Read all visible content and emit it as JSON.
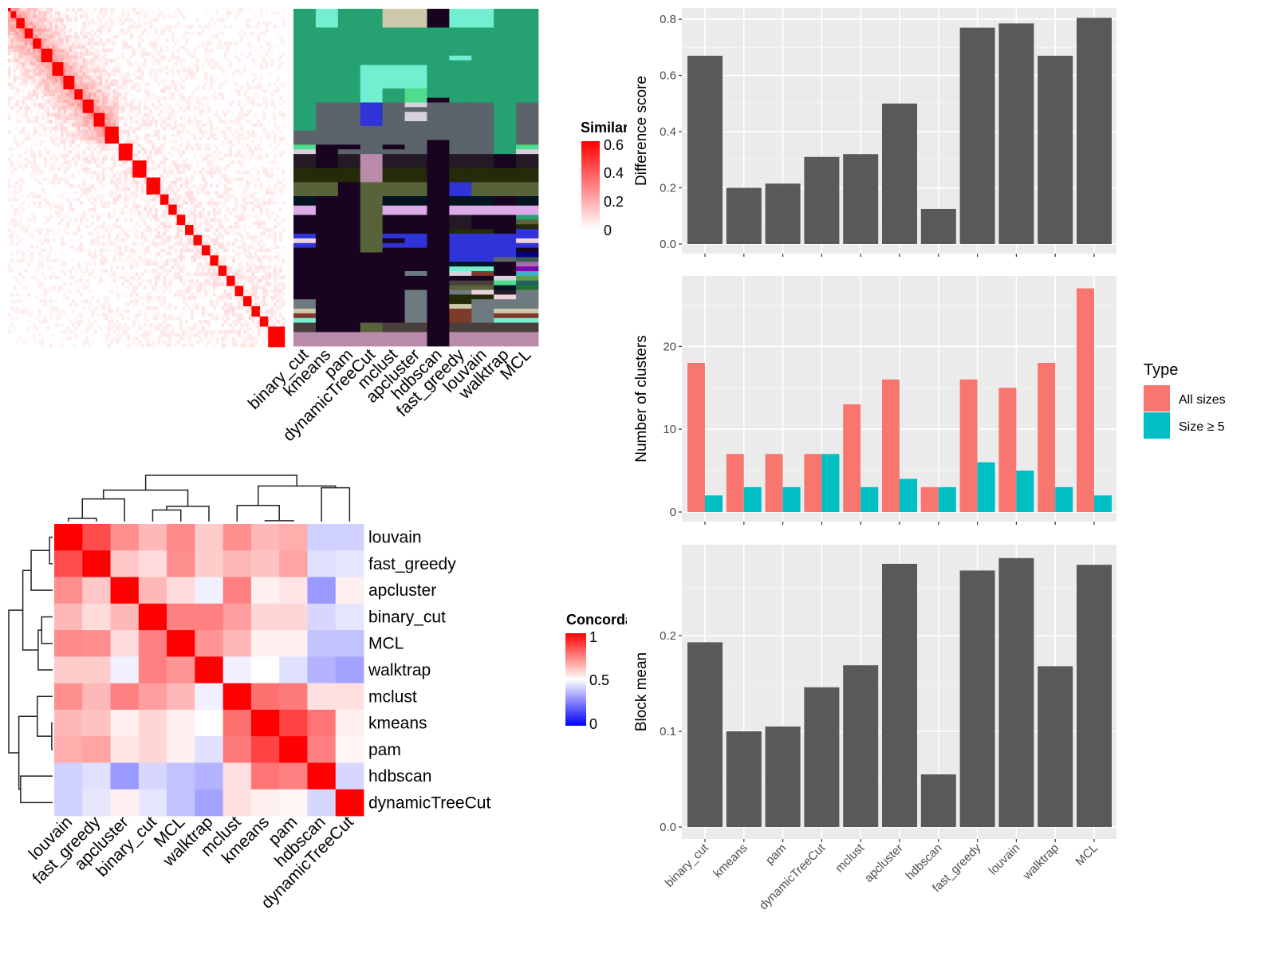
{
  "colors": {
    "panel_bg": "#ebebeb",
    "bar_gray": "#595959",
    "all_sizes": "#f8766d",
    "size5": "#00bfc4",
    "sim_low": "#ffffff",
    "sim_high": "#ff0000",
    "conc_low": "#0000ff",
    "conc_mid": "#ffffff",
    "conc_high": "#ff0000"
  },
  "similarity_legend": {
    "title": "Similarity",
    "ticks": [
      "0",
      "0.2",
      "0.4",
      "0.6"
    ],
    "range": [
      0,
      0.6
    ]
  },
  "concordance_legend": {
    "title": "Concordance",
    "ticks": [
      "0",
      "0.5",
      "1"
    ],
    "range": [
      0,
      1
    ]
  },
  "membership": {
    "methods": [
      "binary_cut",
      "kmeans",
      "pam",
      "dynamicTreeCut",
      "mclust",
      "apcluster",
      "hdbscan",
      "fast_greedy",
      "louvain",
      "walktrap",
      "MCL"
    ],
    "n_rows": 72,
    "palette": {
      "G": "#26a172",
      "M": "#72eed0",
      "T": "#cfc9ab",
      "D": "#180420",
      "S": "#5a646a",
      "B": "#2f33d8",
      "L": "#d8d0dc",
      "LG": "#4edd8c",
      "K": "#231a26",
      "O": "#252a08",
      "O2": "#58633a",
      "N": "#021520",
      "P": "#dcaae6",
      "MV": "#b98aaa",
      "GR": "#6f7a80",
      "BR": "#803a2c",
      "DB": "#4a3f3e",
      "PL": "#ecd3dc",
      "NV": "#00008b",
      "TL": "#3c5c50",
      "VL": "#a070b0",
      "PU": "#8000b0",
      "SB": "#40b0d0",
      "LI": "#60a040",
      "TE": "#206060",
      "FG": "#207030"
    },
    "columns": [
      [
        [
          0,
          26,
          "G"
        ],
        [
          26,
          29,
          "S"
        ],
        [
          29,
          30,
          "LG"
        ],
        [
          30,
          31,
          "L"
        ],
        [
          31,
          34,
          "K"
        ],
        [
          34,
          37,
          "O"
        ],
        [
          37,
          40,
          "O2"
        ],
        [
          40,
          42,
          "N"
        ],
        [
          42,
          44,
          "P"
        ],
        [
          44,
          48,
          "D"
        ],
        [
          48,
          49,
          "B"
        ],
        [
          49,
          50,
          "PL"
        ],
        [
          50,
          51,
          "B"
        ],
        [
          51,
          62,
          "D"
        ],
        [
          62,
          64,
          "GR"
        ],
        [
          64,
          65,
          "T"
        ],
        [
          65,
          66,
          "BR"
        ],
        [
          66,
          67,
          "M"
        ],
        [
          67,
          69,
          "DB"
        ],
        [
          69,
          72,
          "MV"
        ]
      ],
      [
        [
          0,
          4,
          "M"
        ],
        [
          4,
          20,
          "G"
        ],
        [
          20,
          29,
          "S"
        ],
        [
          29,
          34,
          "D"
        ],
        [
          34,
          37,
          "O"
        ],
        [
          37,
          40,
          "O2"
        ],
        [
          40,
          69,
          "D"
        ],
        [
          69,
          72,
          "MV"
        ]
      ],
      [
        [
          0,
          20,
          "G"
        ],
        [
          20,
          29,
          "S"
        ],
        [
          29,
          30,
          "D"
        ],
        [
          30,
          31,
          "S"
        ],
        [
          31,
          34,
          "K"
        ],
        [
          34,
          37,
          "O"
        ],
        [
          37,
          69,
          "D"
        ],
        [
          69,
          72,
          "MV"
        ]
      ],
      [
        [
          0,
          12,
          "G"
        ],
        [
          12,
          20,
          "M"
        ],
        [
          20,
          25,
          "B"
        ],
        [
          25,
          31,
          "S"
        ],
        [
          31,
          37,
          "MV"
        ],
        [
          37,
          52,
          "O2"
        ],
        [
          52,
          67,
          "D"
        ],
        [
          67,
          69,
          "O2"
        ],
        [
          69,
          72,
          "MV"
        ]
      ],
      [
        [
          0,
          4,
          "T"
        ],
        [
          4,
          12,
          "G"
        ],
        [
          12,
          17,
          "M"
        ],
        [
          17,
          20,
          "G"
        ],
        [
          20,
          29,
          "S"
        ],
        [
          29,
          30,
          "D"
        ],
        [
          30,
          31,
          "S"
        ],
        [
          31,
          34,
          "K"
        ],
        [
          34,
          37,
          "O"
        ],
        [
          37,
          40,
          "O2"
        ],
        [
          40,
          42,
          "N"
        ],
        [
          42,
          44,
          "P"
        ],
        [
          44,
          48,
          "D"
        ],
        [
          48,
          49,
          "B"
        ],
        [
          49,
          50,
          "D"
        ],
        [
          50,
          51,
          "B"
        ],
        [
          51,
          67,
          "D"
        ],
        [
          67,
          69,
          "DB"
        ],
        [
          69,
          72,
          "MV"
        ]
      ],
      [
        [
          0,
          4,
          "T"
        ],
        [
          4,
          12,
          "G"
        ],
        [
          12,
          17,
          "M"
        ],
        [
          17,
          20,
          "LG"
        ],
        [
          20,
          21,
          "L"
        ],
        [
          21,
          22,
          "S"
        ],
        [
          22,
          24,
          "L"
        ],
        [
          24,
          31,
          "S"
        ],
        [
          31,
          34,
          "K"
        ],
        [
          34,
          37,
          "O"
        ],
        [
          37,
          40,
          "O2"
        ],
        [
          40,
          42,
          "N"
        ],
        [
          42,
          44,
          "P"
        ],
        [
          44,
          48,
          "D"
        ],
        [
          48,
          51,
          "B"
        ],
        [
          51,
          56,
          "D"
        ],
        [
          56,
          57,
          "GR"
        ],
        [
          57,
          60,
          "D"
        ],
        [
          60,
          67,
          "GR"
        ],
        [
          67,
          69,
          "DB"
        ],
        [
          69,
          72,
          "MV"
        ]
      ],
      [
        [
          0,
          4,
          "D"
        ],
        [
          4,
          19,
          "G"
        ],
        [
          19,
          20,
          "D"
        ],
        [
          20,
          28,
          "S"
        ],
        [
          28,
          72,
          "D"
        ]
      ],
      [
        [
          0,
          4,
          "M"
        ],
        [
          4,
          10,
          "G"
        ],
        [
          10,
          11,
          "M"
        ],
        [
          11,
          20,
          "G"
        ],
        [
          20,
          31,
          "S"
        ],
        [
          31,
          34,
          "K"
        ],
        [
          34,
          37,
          "O"
        ],
        [
          37,
          40,
          "B"
        ],
        [
          40,
          42,
          "N"
        ],
        [
          42,
          44,
          "P"
        ],
        [
          44,
          47,
          "K"
        ],
        [
          47,
          48,
          "O"
        ],
        [
          48,
          54,
          "B"
        ],
        [
          54,
          55,
          "N"
        ],
        [
          55,
          56,
          "M"
        ],
        [
          56,
          57,
          "L"
        ],
        [
          57,
          58,
          "D"
        ],
        [
          58,
          59,
          "DB"
        ],
        [
          59,
          60,
          "O2"
        ],
        [
          60,
          61,
          "GR"
        ],
        [
          61,
          63,
          "O"
        ],
        [
          63,
          64,
          "T"
        ],
        [
          64,
          67,
          "BR"
        ],
        [
          67,
          69,
          "DB"
        ],
        [
          69,
          72,
          "MV"
        ]
      ],
      [
        [
          0,
          4,
          "M"
        ],
        [
          4,
          20,
          "G"
        ],
        [
          20,
          31,
          "S"
        ],
        [
          31,
          34,
          "K"
        ],
        [
          34,
          37,
          "O"
        ],
        [
          37,
          40,
          "O2"
        ],
        [
          40,
          42,
          "N"
        ],
        [
          42,
          44,
          "P"
        ],
        [
          44,
          47,
          "D"
        ],
        [
          47,
          48,
          "O"
        ],
        [
          48,
          54,
          "B"
        ],
        [
          54,
          55,
          "N"
        ],
        [
          55,
          56,
          "M"
        ],
        [
          56,
          57,
          "BR"
        ],
        [
          57,
          58,
          "D"
        ],
        [
          58,
          59,
          "DB"
        ],
        [
          59,
          60,
          "O2"
        ],
        [
          60,
          61,
          "PL"
        ],
        [
          61,
          62,
          "O"
        ],
        [
          62,
          67,
          "GR"
        ],
        [
          67,
          69,
          "DB"
        ],
        [
          69,
          72,
          "MV"
        ]
      ],
      [
        [
          0,
          31,
          "G"
        ],
        [
          31,
          34,
          "D"
        ],
        [
          34,
          37,
          "O"
        ],
        [
          37,
          40,
          "O2"
        ],
        [
          40,
          42,
          "D"
        ],
        [
          42,
          44,
          "P"
        ],
        [
          44,
          48,
          "D"
        ],
        [
          48,
          53,
          "B"
        ],
        [
          53,
          54,
          "S"
        ],
        [
          54,
          57,
          "D"
        ],
        [
          57,
          58,
          "L"
        ],
        [
          58,
          59,
          "LG"
        ],
        [
          59,
          60,
          "N"
        ],
        [
          60,
          61,
          "K"
        ],
        [
          61,
          62,
          "PL"
        ],
        [
          62,
          64,
          "GR"
        ],
        [
          64,
          65,
          "T"
        ],
        [
          65,
          66,
          "BR"
        ],
        [
          66,
          67,
          "M"
        ],
        [
          67,
          69,
          "DB"
        ],
        [
          69,
          72,
          "MV"
        ]
      ],
      [
        [
          0,
          20,
          "G"
        ],
        [
          20,
          29,
          "S"
        ],
        [
          29,
          30,
          "LG"
        ],
        [
          30,
          31,
          "L"
        ],
        [
          31,
          34,
          "K"
        ],
        [
          34,
          37,
          "O"
        ],
        [
          37,
          40,
          "O2"
        ],
        [
          40,
          42,
          "N"
        ],
        [
          42,
          44,
          "P"
        ],
        [
          44,
          45,
          "G"
        ],
        [
          45,
          46,
          "O2"
        ],
        [
          46,
          47,
          "O"
        ],
        [
          47,
          49,
          "B"
        ],
        [
          49,
          50,
          "PL"
        ],
        [
          50,
          51,
          "B"
        ],
        [
          51,
          52,
          "D"
        ],
        [
          52,
          53,
          "NV"
        ],
        [
          53,
          54,
          "TL"
        ],
        [
          54,
          55,
          "VL"
        ],
        [
          55,
          56,
          "PU"
        ],
        [
          56,
          57,
          "SB"
        ],
        [
          57,
          58,
          "LI"
        ],
        [
          58,
          59,
          "TE"
        ],
        [
          59,
          60,
          "FG"
        ],
        [
          60,
          64,
          "GR"
        ],
        [
          64,
          65,
          "T"
        ],
        [
          65,
          66,
          "BR"
        ],
        [
          66,
          67,
          "M"
        ],
        [
          67,
          69,
          "DB"
        ],
        [
          69,
          72,
          "MV"
        ]
      ]
    ]
  },
  "chart_data": [
    {
      "type": "heatmap",
      "name": "concordance",
      "rows": [
        "louvain",
        "fast_greedy",
        "apcluster",
        "binary_cut",
        "MCL",
        "walktrap",
        "mclust",
        "kmeans",
        "pam",
        "hdbscan",
        "dynamicTreeCut"
      ],
      "columns": [
        "louvain",
        "fast_greedy",
        "apcluster",
        "binary_cut",
        "MCL",
        "walktrap",
        "mclust",
        "kmeans",
        "pam",
        "hdbscan",
        "dynamicTreeCut"
      ],
      "values": [
        [
          1.0,
          0.85,
          0.72,
          0.64,
          0.73,
          0.6,
          0.72,
          0.64,
          0.66,
          0.41,
          0.41
        ],
        [
          0.85,
          1.0,
          0.61,
          0.57,
          0.72,
          0.6,
          0.64,
          0.62,
          0.68,
          0.44,
          0.45
        ],
        [
          0.72,
          0.61,
          1.0,
          0.64,
          0.57,
          0.47,
          0.75,
          0.53,
          0.55,
          0.3,
          0.53
        ],
        [
          0.64,
          0.57,
          0.64,
          1.0,
          0.75,
          0.75,
          0.69,
          0.58,
          0.58,
          0.42,
          0.45
        ],
        [
          0.73,
          0.72,
          0.57,
          0.75,
          1.0,
          0.71,
          0.64,
          0.53,
          0.53,
          0.38,
          0.38
        ],
        [
          0.6,
          0.6,
          0.47,
          0.75,
          0.71,
          1.0,
          0.47,
          0.5,
          0.44,
          0.35,
          0.32
        ],
        [
          0.72,
          0.64,
          0.75,
          0.69,
          0.64,
          0.47,
          1.0,
          0.78,
          0.76,
          0.56,
          0.56
        ],
        [
          0.64,
          0.62,
          0.53,
          0.58,
          0.53,
          0.5,
          0.78,
          1.0,
          0.87,
          0.77,
          0.53
        ],
        [
          0.66,
          0.68,
          0.55,
          0.58,
          0.53,
          0.44,
          0.76,
          0.87,
          1.0,
          0.75,
          0.52
        ],
        [
          0.41,
          0.44,
          0.3,
          0.42,
          0.38,
          0.35,
          0.56,
          0.77,
          0.75,
          1.0,
          0.42
        ],
        [
          0.41,
          0.45,
          0.53,
          0.45,
          0.38,
          0.32,
          0.56,
          0.53,
          0.52,
          0.42,
          1.0
        ]
      ],
      "dendrogram_merges": [
        {
          "a": 0,
          "b": 1,
          "h": 0.07
        },
        {
          "a": 7,
          "b": 8,
          "h": 0.02
        },
        {
          "a": 3,
          "b": 4,
          "h": 0.25
        },
        {
          "a": "n2",
          "b": 5,
          "h": 0.33
        },
        {
          "a": 6,
          "b": "n1",
          "h": 0.35
        },
        {
          "a": "n0",
          "b": 2,
          "h": 0.49
        },
        {
          "a": "n5",
          "b": "n3",
          "h": 0.68
        },
        {
          "a": 9,
          "b": 10,
          "h": 0.73
        },
        {
          "a": "n4",
          "b": "n7",
          "h": 0.77
        },
        {
          "a": "n6",
          "b": "n8",
          "h": 1.0
        }
      ]
    },
    {
      "type": "bar",
      "name": "difference",
      "categories": [
        "binary_cut",
        "kmeans",
        "pam",
        "dynamicTreeCut",
        "mclust",
        "apcluster",
        "hdbscan",
        "fast_greedy",
        "louvain",
        "walktrap",
        "MCL"
      ],
      "values": [
        0.67,
        0.2,
        0.215,
        0.31,
        0.32,
        0.5,
        0.125,
        0.77,
        0.785,
        0.67,
        0.805
      ],
      "ylabel": "Difference score",
      "ylim": [
        0,
        0.84
      ],
      "yticks": [
        "0.0",
        "0.2",
        "0.4",
        "0.6",
        "0.8"
      ],
      "grid": true
    },
    {
      "type": "bar",
      "name": "clusters",
      "categories": [
        "binary_cut",
        "kmeans",
        "pam",
        "dynamicTreeCut",
        "mclust",
        "apcluster",
        "hdbscan",
        "fast_greedy",
        "louvain",
        "walktrap",
        "MCL"
      ],
      "series": [
        {
          "name": "All sizes",
          "values": [
            18,
            7,
            7,
            7,
            13,
            16,
            3,
            16,
            15,
            18,
            27
          ]
        },
        {
          "name": "Size ≥ 5",
          "values": [
            2,
            3,
            3,
            7,
            3,
            4,
            3,
            6,
            5,
            3,
            2
          ]
        }
      ],
      "ylabel": "Number of clusters",
      "ylim": [
        0,
        28.5
      ],
      "yticks": [
        "0",
        "10",
        "20"
      ],
      "legend_title": "Type",
      "legend_position": "right",
      "grid": true
    },
    {
      "type": "bar",
      "name": "block",
      "categories": [
        "binary_cut",
        "kmeans",
        "pam",
        "dynamicTreeCut",
        "mclust",
        "apcluster",
        "hdbscan",
        "fast_greedy",
        "louvain",
        "walktrap",
        "MCL"
      ],
      "values": [
        0.193,
        0.1,
        0.105,
        0.146,
        0.169,
        0.275,
        0.055,
        0.268,
        0.281,
        0.168,
        0.274
      ],
      "ylabel": "Block mean",
      "ylim": [
        0,
        0.295
      ],
      "yticks": [
        "0.0",
        "0.1",
        "0.2"
      ],
      "grid": true
    }
  ]
}
